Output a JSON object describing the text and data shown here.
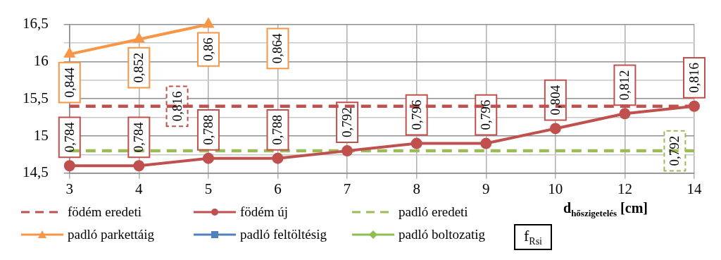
{
  "chart_data": {
    "type": "line",
    "categories": [
      "3",
      "4",
      "5",
      "6",
      "7",
      "8",
      "9",
      "10",
      "12",
      "14"
    ],
    "xlabel": "d$_{hőszigetelés}$ [cm]",
    "ylim": [
      14.5,
      16.5
    ],
    "yticks": [
      {
        "value": 14.5,
        "label": "14,5"
      },
      {
        "value": 14.75,
        "label": null
      },
      {
        "value": 15,
        "label": "15"
      },
      {
        "value": 15.25,
        "label": null
      },
      {
        "value": 15.5,
        "label": "15,5"
      },
      {
        "value": 15.75,
        "label": null
      },
      {
        "value": 16,
        "label": "16"
      },
      {
        "value": 16.25,
        "label": null
      },
      {
        "value": 16.5,
        "label": "16,5"
      }
    ],
    "grid": true,
    "legend": "bottom",
    "annotations": [
      "f$_{Rsi}$",
      {
        "text": "0,784",
        "x": "3",
        "y": 14.6
      },
      {
        "text": "0,784",
        "x": "4",
        "y": 14.6
      },
      {
        "text": "0,788",
        "x": "5",
        "y": 14.7
      },
      {
        "text": "0,788",
        "x": "6",
        "y": 14.7
      },
      {
        "text": "0,792",
        "x": "7",
        "y": 14.8
      },
      {
        "text": "0,796",
        "x": "8",
        "y": 14.9
      },
      {
        "text": "0,796",
        "x": "9",
        "y": 14.9
      },
      {
        "text": "0,804",
        "x": "10",
        "y": 15.1
      },
      {
        "text": "0,812",
        "x": "12",
        "y": 15.3
      },
      {
        "text": "0,816",
        "x": "14",
        "y": 15.4
      },
      {
        "text": "0,816",
        "x": "4",
        "y": 15.4
      },
      {
        "text": "0,792",
        "x": "14",
        "y": 14.8
      },
      {
        "text": "0,844",
        "x": "3",
        "y": 16.1
      },
      {
        "text": "0,852",
        "x": "4",
        "y": 16.3
      },
      {
        "text": "0,86",
        "x": "5",
        "y": 16.5
      },
      "0,864"
    ],
    "series": [
      {
        "name": "födém eredeti",
        "color": "#c0504d",
        "line_style": "dashed",
        "marker": "none",
        "values": [
          15.4,
          15.4,
          15.4,
          15.4,
          15.4,
          15.4,
          15.4,
          15.4,
          15.4,
          15.4
        ]
      },
      {
        "name": "födém új",
        "color": "#c0504d",
        "line_style": "solid",
        "marker": "circle",
        "values": [
          14.6,
          14.6,
          14.7,
          14.7,
          14.8,
          14.9,
          14.9,
          15.1,
          15.3,
          15.4
        ]
      },
      {
        "name": "padló eredeti",
        "color": "#9bbb59",
        "line_style": "dashed",
        "marker": "none",
        "values": [
          14.8,
          14.8,
          14.8,
          14.8,
          14.8,
          14.8,
          14.8,
          14.8,
          14.8,
          14.8
        ]
      },
      {
        "name": "padló parkettáig",
        "color": "#f79646",
        "line_style": "solid",
        "marker": "triangle",
        "values": [
          16.1,
          16.3,
          16.5,
          null,
          null,
          null,
          null,
          null,
          null,
          null
        ]
      },
      {
        "name": "padló feltöltésig",
        "color": "#4f81bd",
        "line_style": "solid",
        "marker": "square",
        "values": [
          null,
          null,
          null,
          null,
          null,
          null,
          null,
          null,
          null,
          null
        ]
      },
      {
        "name": "padló boltozatig",
        "color": "#8dbe52",
        "line_style": "solid",
        "marker": "diamond",
        "values": [
          null,
          null,
          null,
          null,
          null,
          null,
          null,
          null,
          null,
          null
        ]
      }
    ]
  }
}
